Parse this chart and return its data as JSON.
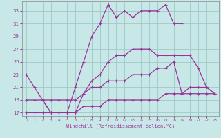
{
  "background_color": "#c8e8e8",
  "grid_color": "#a0c8c8",
  "line_color": "#993399",
  "xlabel": "Windchill (Refroidissement éolien,°C)",
  "xlim": [
    -0.5,
    23.5
  ],
  "ylim": [
    16.5,
    34.5
  ],
  "xticks": [
    0,
    1,
    2,
    3,
    4,
    5,
    6,
    7,
    8,
    9,
    10,
    11,
    12,
    13,
    14,
    15,
    16,
    17,
    18,
    19,
    20,
    21,
    22,
    23
  ],
  "yticks": [
    17,
    19,
    21,
    23,
    25,
    27,
    29,
    31,
    33
  ],
  "line1_x": [
    0,
    1,
    2,
    3,
    4,
    5,
    6,
    7,
    8,
    9,
    10,
    11,
    12,
    13,
    14,
    15,
    16,
    17,
    18,
    19
  ],
  "line1_y": [
    23,
    21,
    19,
    17,
    17,
    17,
    21,
    25,
    29,
    31,
    34,
    32,
    33,
    32,
    33,
    33,
    33,
    34,
    31,
    31
  ],
  "line2_x": [
    2,
    3,
    4,
    5,
    6,
    7,
    8,
    9,
    10,
    11,
    12,
    13,
    14,
    15,
    16,
    17,
    18,
    19,
    20,
    21,
    22,
    23
  ],
  "line2_y": [
    19,
    17,
    17,
    17,
    17,
    20,
    22,
    23,
    25,
    26,
    26,
    27,
    27,
    27,
    26,
    26,
    26,
    26,
    26,
    24,
    21,
    20
  ],
  "line3_x": [
    0,
    1,
    2,
    3,
    4,
    5,
    6,
    7,
    8,
    9,
    10,
    11,
    12,
    13,
    14,
    15,
    16,
    17,
    18,
    19,
    20,
    21,
    22,
    23
  ],
  "line3_y": [
    19,
    19,
    19,
    19,
    19,
    19,
    19,
    20,
    21,
    21,
    22,
    22,
    22,
    23,
    23,
    23,
    24,
    24,
    25,
    20,
    21,
    21,
    21,
    20
  ],
  "line4_x": [
    0,
    1,
    2,
    3,
    4,
    5,
    6,
    7,
    8,
    9,
    10,
    11,
    12,
    13,
    14,
    15,
    16,
    17,
    18,
    19,
    20,
    21,
    22,
    23
  ],
  "line4_y": [
    17,
    17,
    17,
    17,
    17,
    17,
    17,
    18,
    18,
    18,
    19,
    19,
    19,
    19,
    19,
    19,
    19,
    20,
    20,
    20,
    20,
    20,
    20,
    20
  ]
}
